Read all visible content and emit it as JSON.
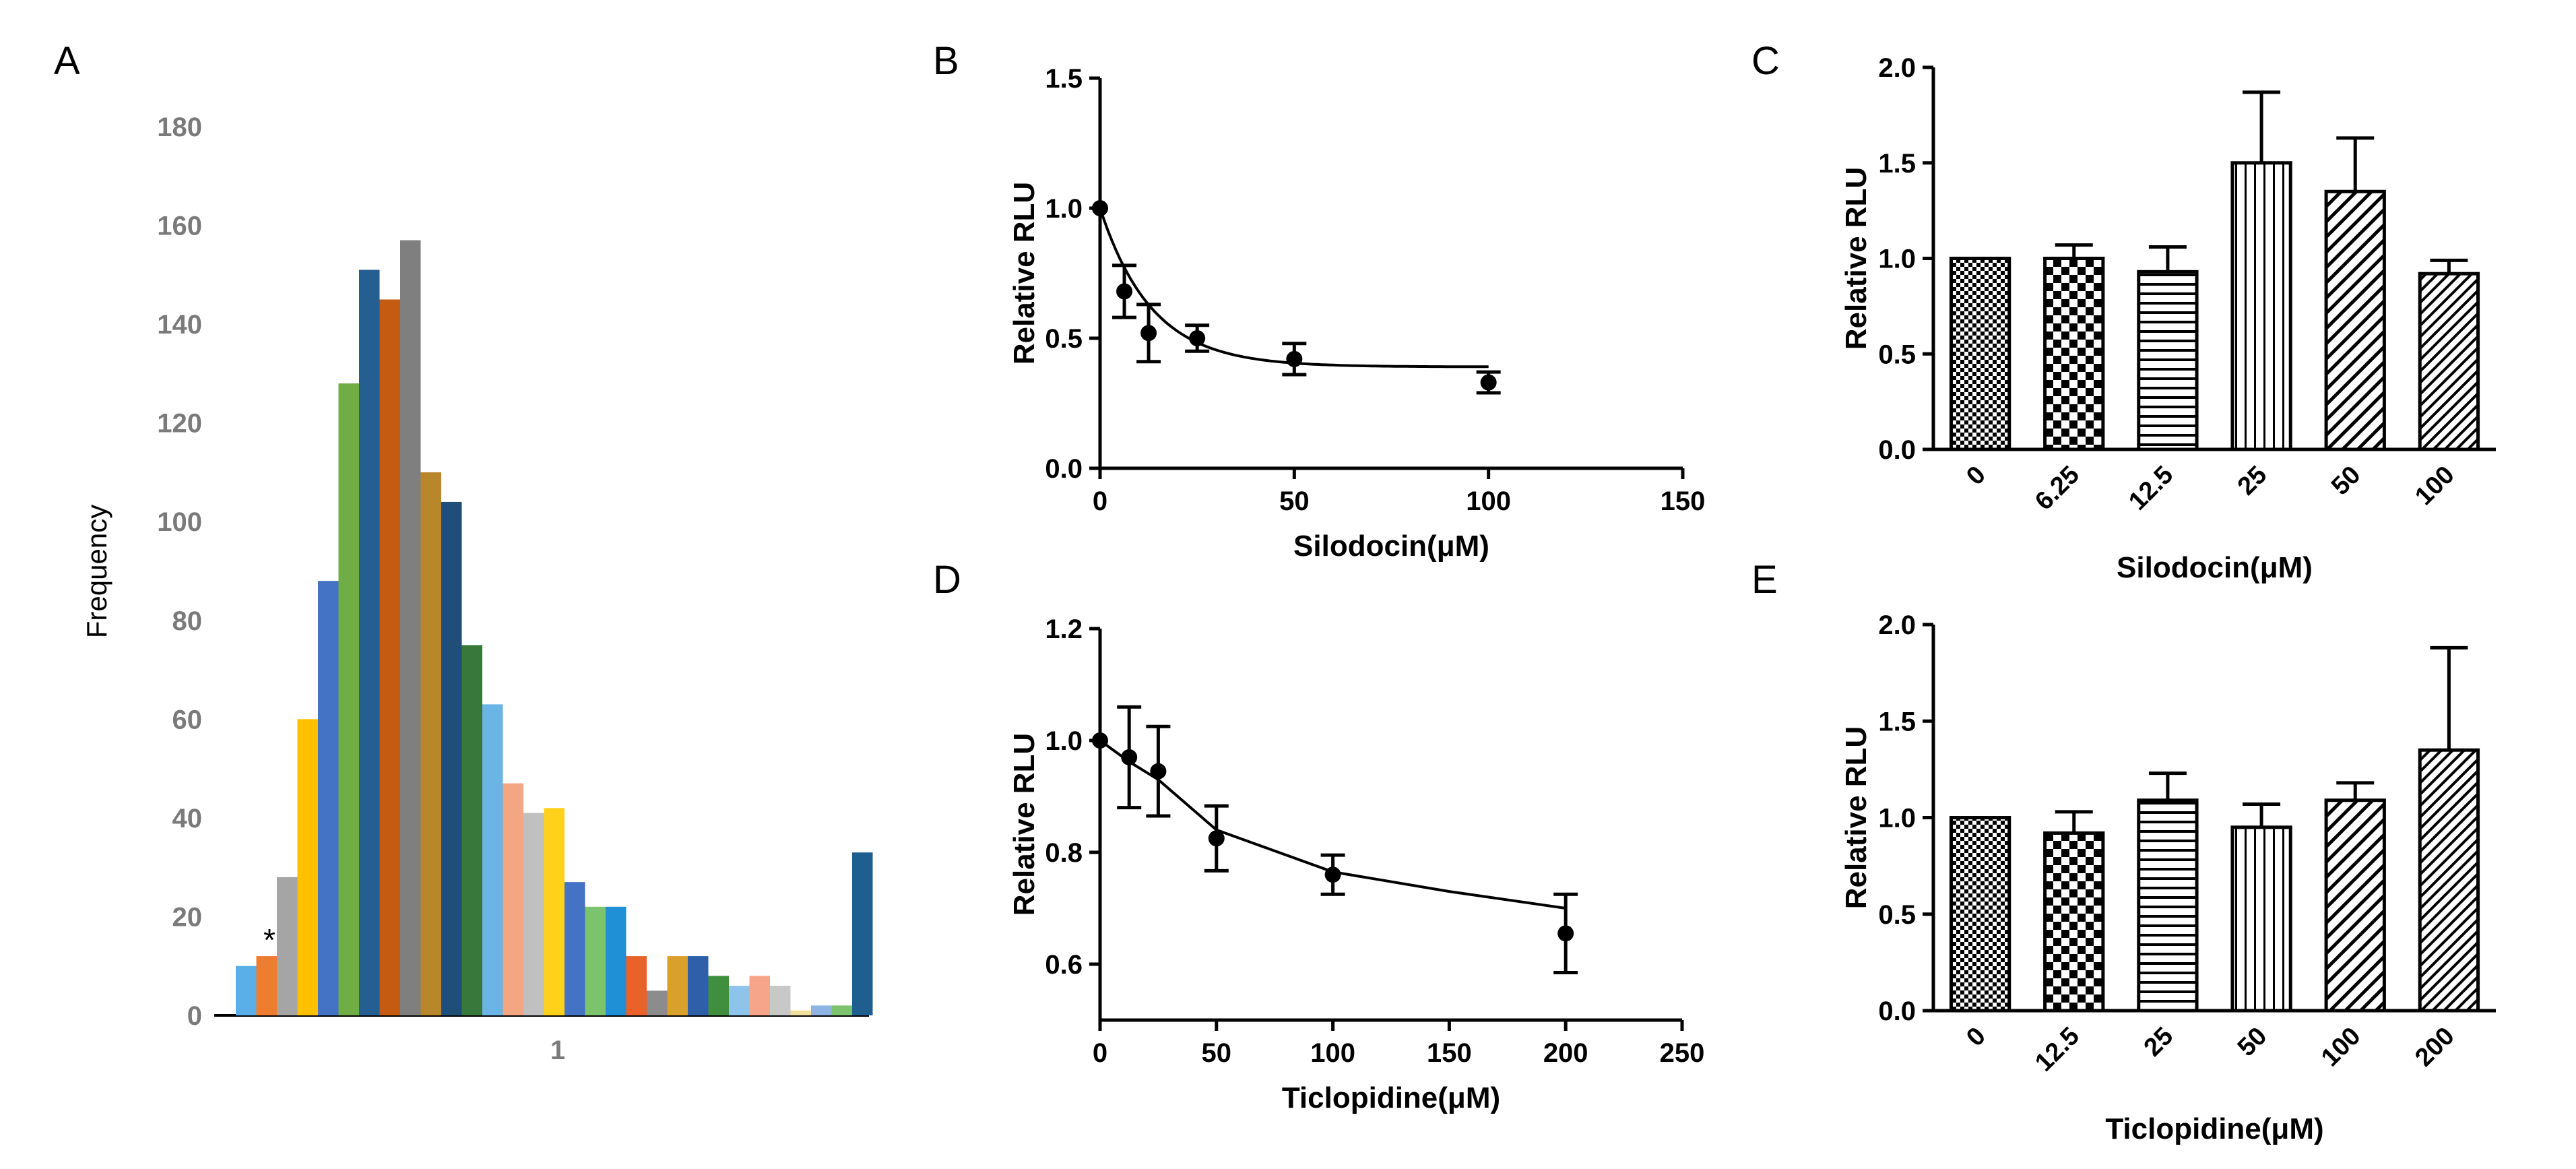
{
  "chart_data": [
    {
      "panel": "A",
      "type": "bar",
      "title": "",
      "xlabel": "1",
      "ylabel": "Frequency",
      "ylim": [
        0,
        180
      ],
      "yticks": [
        "0",
        "20",
        "40",
        "60",
        "80",
        "100",
        "120",
        "140",
        "160",
        "180"
      ],
      "annotation": "*",
      "values": [
        10,
        12,
        28,
        60,
        88,
        128,
        151,
        145,
        157,
        110,
        104,
        75,
        63,
        47,
        41,
        42,
        27,
        22,
        22,
        12,
        5,
        12,
        12,
        8,
        6,
        8,
        6,
        1,
        2,
        2,
        33
      ],
      "colors": [
        "#5bafe8",
        "#ed7d31",
        "#a5a5a5",
        "#ffc000",
        "#4472c4",
        "#70ad47",
        "#255e91",
        "#c55a11",
        "#7f7f7f",
        "#b8862b",
        "#1f4e79",
        "#38783a",
        "#6bb4e6",
        "#f4a582",
        "#c0c0c0",
        "#ffd11a",
        "#4472c4",
        "#7cc36e",
        "#1f8fd6",
        "#e8622a",
        "#8c8c8c",
        "#d9a12b",
        "#2e5fa8",
        "#3f8f3f",
        "#8ec3ea",
        "#f7a58a",
        "#c8c8c8",
        "#f0e0a0",
        "#8eb4e3",
        "#7cc36e",
        "#1f5f8f"
      ]
    },
    {
      "panel": "B",
      "type": "scatter",
      "xlabel": "Silodocin(μM)",
      "ylabel": "Relative RLU",
      "xlim": [
        0,
        150
      ],
      "ylim": [
        0,
        1.5
      ],
      "xticks": [
        "0",
        "50",
        "100",
        "150"
      ],
      "yticks": [
        "0.0",
        "0.5",
        "1.0",
        "1.5"
      ],
      "points": [
        {
          "x": 0,
          "y": 1.0,
          "err": 0
        },
        {
          "x": 6.25,
          "y": 0.68,
          "err": 0.1
        },
        {
          "x": 12.5,
          "y": 0.52,
          "err": 0.11
        },
        {
          "x": 25,
          "y": 0.5,
          "err": 0.05
        },
        {
          "x": 50,
          "y": 0.42,
          "err": 0.06
        },
        {
          "x": 100,
          "y": 0.33,
          "err": 0.04
        }
      ],
      "fit": {
        "bottom": 0.39,
        "top": 1.0,
        "k": 0.075
      }
    },
    {
      "panel": "C",
      "type": "bar",
      "xlabel": "Silodocin(μM)",
      "ylabel": "Relative RLU",
      "ylim": [
        0,
        2.0
      ],
      "yticks": [
        "0.0",
        "0.5",
        "1.0",
        "1.5",
        "2.0"
      ],
      "categories": [
        "0",
        "6.25",
        "12.5",
        "25",
        "50",
        "100"
      ],
      "values": [
        1.0,
        1.0,
        0.93,
        1.5,
        1.35,
        0.92
      ],
      "errors": [
        0,
        0.07,
        0.13,
        0.37,
        0.28,
        0.07
      ]
    },
    {
      "panel": "D",
      "type": "scatter",
      "xlabel": "Ticlopidine(μM)",
      "ylabel": "Relative RLU",
      "xlim": [
        0,
        250
      ],
      "ylim": [
        0.5,
        1.2
      ],
      "xticks": [
        "0",
        "50",
        "100",
        "150",
        "200",
        "250"
      ],
      "yticks": [
        "0.6",
        "0.8",
        "1.0",
        "1.2"
      ],
      "points": [
        {
          "x": 0,
          "y": 1.0,
          "err": 0
        },
        {
          "x": 12.5,
          "y": 0.97,
          "err": 0.09
        },
        {
          "x": 25,
          "y": 0.945,
          "err": 0.08
        },
        {
          "x": 50,
          "y": 0.825,
          "err": 0.058
        },
        {
          "x": 100,
          "y": 0.76,
          "err": 0.035
        },
        {
          "x": 200,
          "y": 0.655,
          "err": 0.07
        }
      ],
      "fit_points": [
        [
          0,
          1.0
        ],
        [
          12.5,
          0.962
        ],
        [
          25,
          0.93
        ],
        [
          50,
          0.84
        ],
        [
          100,
          0.765
        ],
        [
          150,
          0.73
        ],
        [
          200,
          0.7
        ]
      ]
    },
    {
      "panel": "E",
      "type": "bar",
      "xlabel": "Ticlopidine(μM)",
      "ylabel": "Relative RLU",
      "ylim": [
        0,
        2.0
      ],
      "yticks": [
        "0.0",
        "0.5",
        "1.0",
        "1.5",
        "2.0"
      ],
      "categories": [
        "0",
        "12.5",
        "25",
        "50",
        "100",
        "200"
      ],
      "values": [
        1.0,
        0.92,
        1.09,
        0.95,
        1.09,
        1.35
      ],
      "errors": [
        0,
        0.11,
        0.14,
        0.12,
        0.09,
        0.53
      ]
    }
  ],
  "panel_labels": [
    "A",
    "B",
    "C",
    "D",
    "E"
  ]
}
